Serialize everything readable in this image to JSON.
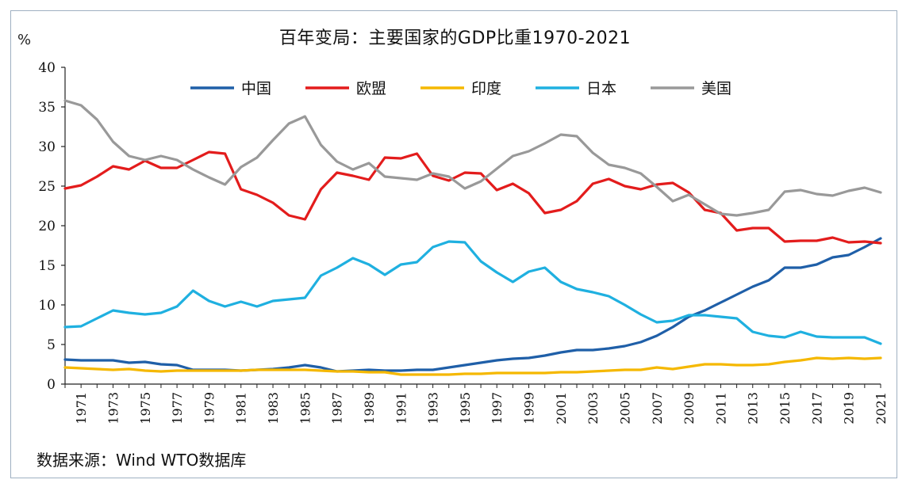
{
  "chart_data": {
    "type": "line",
    "title": "百年变局：主要国家的GDP比重1970-2021",
    "ylabel": "%",
    "xlabel": "",
    "ylim": [
      0,
      40
    ],
    "yticks": [
      0,
      5,
      10,
      15,
      20,
      25,
      30,
      35,
      40
    ],
    "x": [
      1970,
      1971,
      1972,
      1973,
      1974,
      1975,
      1976,
      1977,
      1978,
      1979,
      1980,
      1981,
      1982,
      1983,
      1984,
      1985,
      1986,
      1987,
      1988,
      1989,
      1990,
      1991,
      1992,
      1993,
      1994,
      1995,
      1996,
      1997,
      1998,
      1999,
      2000,
      2001,
      2002,
      2003,
      2004,
      2005,
      2006,
      2007,
      2008,
      2009,
      2010,
      2011,
      2012,
      2013,
      2014,
      2015,
      2016,
      2017,
      2018,
      2019,
      2020,
      2021
    ],
    "xticks": [
      1971,
      1973,
      1975,
      1977,
      1979,
      1981,
      1983,
      1985,
      1987,
      1989,
      1991,
      1993,
      1995,
      1997,
      1999,
      2001,
      2003,
      2005,
      2007,
      2009,
      2011,
      2013,
      2015,
      2017,
      2019,
      2021
    ],
    "legend_position": "top",
    "series": [
      {
        "name": "中国",
        "color": "#1f5fa8",
        "values": [
          3.1,
          3.0,
          3.0,
          3.0,
          2.7,
          2.8,
          2.5,
          2.4,
          1.8,
          1.8,
          1.8,
          1.7,
          1.8,
          1.9,
          2.1,
          2.4,
          2.1,
          1.6,
          1.7,
          1.8,
          1.7,
          1.7,
          1.8,
          1.8,
          2.1,
          2.4,
          2.7,
          3.0,
          3.2,
          3.3,
          3.6,
          4.0,
          4.3,
          4.3,
          4.5,
          4.8,
          5.3,
          6.1,
          7.2,
          8.5,
          9.3,
          10.3,
          11.3,
          12.3,
          13.1,
          14.7,
          14.7,
          15.1,
          16.0,
          16.3,
          17.3,
          18.4
        ]
      },
      {
        "name": "欧盟",
        "color": "#e31c1c",
        "values": [
          24.7,
          25.1,
          26.2,
          27.5,
          27.1,
          28.2,
          27.3,
          27.3,
          28.3,
          29.3,
          29.1,
          24.6,
          23.9,
          22.9,
          21.3,
          20.8,
          24.6,
          26.7,
          26.3,
          25.8,
          28.6,
          28.5,
          29.1,
          26.3,
          25.7,
          26.7,
          26.6,
          24.5,
          25.3,
          24.1,
          21.6,
          22.0,
          23.1,
          25.3,
          25.9,
          25.0,
          24.6,
          25.2,
          25.4,
          24.2,
          22.0,
          21.6,
          19.4,
          19.7,
          19.7,
          18.0,
          18.1,
          18.1,
          18.5,
          17.9,
          18.0,
          17.8
        ]
      },
      {
        "name": "印度",
        "color": "#f5b800",
        "values": [
          2.1,
          2.0,
          1.9,
          1.8,
          1.9,
          1.7,
          1.6,
          1.7,
          1.7,
          1.7,
          1.7,
          1.7,
          1.8,
          1.8,
          1.8,
          1.8,
          1.7,
          1.6,
          1.6,
          1.5,
          1.5,
          1.2,
          1.2,
          1.2,
          1.2,
          1.3,
          1.3,
          1.4,
          1.4,
          1.4,
          1.4,
          1.5,
          1.5,
          1.6,
          1.7,
          1.8,
          1.8,
          2.1,
          1.9,
          2.2,
          2.5,
          2.5,
          2.4,
          2.4,
          2.5,
          2.8,
          3.0,
          3.3,
          3.2,
          3.3,
          3.2,
          3.3
        ]
      },
      {
        "name": "日本",
        "color": "#1fb0e0",
        "values": [
          7.2,
          7.3,
          8.3,
          9.3,
          9.0,
          8.8,
          9.0,
          9.8,
          11.8,
          10.5,
          9.8,
          10.4,
          9.8,
          10.5,
          10.7,
          10.9,
          13.7,
          14.7,
          15.9,
          15.1,
          13.8,
          15.1,
          15.4,
          17.3,
          18.0,
          17.9,
          15.5,
          14.1,
          12.9,
          14.2,
          14.7,
          12.9,
          12.0,
          11.6,
          11.1,
          10.0,
          8.8,
          7.8,
          8.0,
          8.7,
          8.7,
          8.5,
          8.3,
          6.6,
          6.1,
          5.9,
          6.6,
          6.0,
          5.9,
          5.9,
          5.9,
          5.1
        ]
      },
      {
        "name": "美国",
        "color": "#999999",
        "values": [
          35.8,
          35.2,
          33.4,
          30.6,
          28.8,
          28.3,
          28.8,
          28.3,
          27.1,
          26.1,
          25.2,
          27.4,
          28.6,
          30.8,
          32.9,
          33.8,
          30.2,
          28.1,
          27.1,
          27.9,
          26.2,
          26.0,
          25.8,
          26.6,
          26.2,
          24.7,
          25.6,
          27.2,
          28.8,
          29.4,
          30.4,
          31.5,
          31.3,
          29.2,
          27.7,
          27.3,
          26.6,
          24.9,
          23.1,
          23.9,
          22.7,
          21.5,
          21.3,
          21.6,
          22.0,
          24.3,
          24.5,
          24.0,
          23.8,
          24.4,
          24.8,
          24.2
        ]
      }
    ]
  },
  "source_text": "数据来源：Wind WTO数据库"
}
